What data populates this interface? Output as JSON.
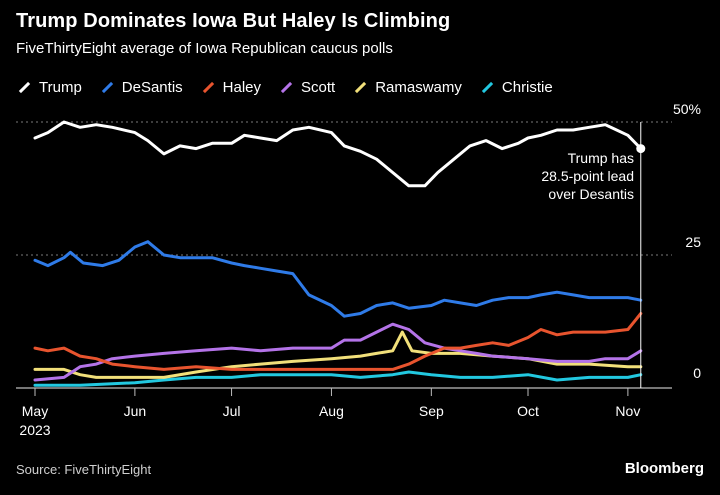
{
  "header": {
    "title": "Trump Dominates Iowa But Haley Is Climbing",
    "subtitle": "FiveThirtyEight average of Iowa Republican caucus polls"
  },
  "footer": {
    "source": "Source: FiveThirtyEight",
    "brand": "Bloomberg"
  },
  "chart_data": {
    "type": "line",
    "title": "Trump Dominates Iowa But Haley Is Climbing",
    "subtitle": "FiveThirtyEight average of Iowa Republican caucus polls",
    "xlabel": "",
    "ylabel": "",
    "ylim": [
      0,
      50
    ],
    "xlim": [
      "2023-05-01",
      "2023-11-06"
    ],
    "y_ticks": [
      0,
      25,
      50
    ],
    "y_tick_labels": [
      "0",
      "25",
      "50%"
    ],
    "x_ticks": [
      "2023-05-01",
      "2023-06-01",
      "2023-07-01",
      "2023-08-01",
      "2023-09-01",
      "2023-10-01",
      "2023-11-01"
    ],
    "x_tick_labels": [
      "May\n2023",
      "Jun",
      "Jul",
      "Aug",
      "Sep",
      "Oct",
      "Nov"
    ],
    "grid": true,
    "legend_position": "top-left",
    "annotation": {
      "text_lines": [
        "Trump has",
        "28.5-point lead",
        "over Desantis"
      ],
      "date": "2023-11-05"
    },
    "series": [
      {
        "name": "Trump",
        "color": "#ffffff",
        "points": [
          [
            "2023-05-01",
            47.0
          ],
          [
            "2023-05-05",
            48.0
          ],
          [
            "2023-05-10",
            50.0
          ],
          [
            "2023-05-15",
            49.0
          ],
          [
            "2023-05-20",
            49.5
          ],
          [
            "2023-05-25",
            49.0
          ],
          [
            "2023-06-01",
            48.0
          ],
          [
            "2023-06-05",
            46.5
          ],
          [
            "2023-06-10",
            44.0
          ],
          [
            "2023-06-15",
            45.5
          ],
          [
            "2023-06-20",
            45.0
          ],
          [
            "2023-06-25",
            46.0
          ],
          [
            "2023-07-01",
            46.0
          ],
          [
            "2023-07-05",
            47.5
          ],
          [
            "2023-07-10",
            47.0
          ],
          [
            "2023-07-15",
            46.5
          ],
          [
            "2023-07-20",
            48.5
          ],
          [
            "2023-07-25",
            49.0
          ],
          [
            "2023-08-01",
            48.0
          ],
          [
            "2023-08-05",
            45.5
          ],
          [
            "2023-08-10",
            44.5
          ],
          [
            "2023-08-15",
            43.0
          ],
          [
            "2023-08-20",
            40.5
          ],
          [
            "2023-08-25",
            38.0
          ],
          [
            "2023-08-30",
            38.0
          ],
          [
            "2023-09-03",
            40.5
          ],
          [
            "2023-09-08",
            43.0
          ],
          [
            "2023-09-13",
            45.5
          ],
          [
            "2023-09-18",
            46.5
          ],
          [
            "2023-09-23",
            45.0
          ],
          [
            "2023-09-28",
            46.0
          ],
          [
            "2023-10-01",
            47.0
          ],
          [
            "2023-10-05",
            47.5
          ],
          [
            "2023-10-10",
            48.5
          ],
          [
            "2023-10-15",
            48.5
          ],
          [
            "2023-10-20",
            49.0
          ],
          [
            "2023-10-25",
            49.5
          ],
          [
            "2023-11-01",
            47.5
          ],
          [
            "2023-11-05",
            45.0
          ]
        ]
      },
      {
        "name": "DeSantis",
        "color": "#2f7be8",
        "points": [
          [
            "2023-05-01",
            24.0
          ],
          [
            "2023-05-05",
            23.0
          ],
          [
            "2023-05-10",
            24.5
          ],
          [
            "2023-05-12",
            25.5
          ],
          [
            "2023-05-16",
            23.5
          ],
          [
            "2023-05-22",
            23.0
          ],
          [
            "2023-05-27",
            24.0
          ],
          [
            "2023-06-01",
            26.5
          ],
          [
            "2023-06-05",
            27.5
          ],
          [
            "2023-06-10",
            25.0
          ],
          [
            "2023-06-15",
            24.5
          ],
          [
            "2023-06-20",
            24.5
          ],
          [
            "2023-06-25",
            24.5
          ],
          [
            "2023-07-01",
            23.5
          ],
          [
            "2023-07-05",
            23.0
          ],
          [
            "2023-07-10",
            22.5
          ],
          [
            "2023-07-15",
            22.0
          ],
          [
            "2023-07-20",
            21.5
          ],
          [
            "2023-07-25",
            17.5
          ],
          [
            "2023-08-01",
            15.5
          ],
          [
            "2023-08-05",
            13.5
          ],
          [
            "2023-08-10",
            14.0
          ],
          [
            "2023-08-15",
            15.5
          ],
          [
            "2023-08-20",
            16.0
          ],
          [
            "2023-08-25",
            15.0
          ],
          [
            "2023-09-01",
            15.5
          ],
          [
            "2023-09-05",
            16.5
          ],
          [
            "2023-09-10",
            16.0
          ],
          [
            "2023-09-15",
            15.5
          ],
          [
            "2023-09-20",
            16.5
          ],
          [
            "2023-09-25",
            17.0
          ],
          [
            "2023-10-01",
            17.0
          ],
          [
            "2023-10-05",
            17.5
          ],
          [
            "2023-10-10",
            18.0
          ],
          [
            "2023-10-15",
            17.5
          ],
          [
            "2023-10-20",
            17.0
          ],
          [
            "2023-10-25",
            17.0
          ],
          [
            "2023-11-01",
            17.0
          ],
          [
            "2023-11-05",
            16.5
          ]
        ]
      },
      {
        "name": "Haley",
        "color": "#e8542e",
        "points": [
          [
            "2023-05-01",
            7.5
          ],
          [
            "2023-05-05",
            7.0
          ],
          [
            "2023-05-10",
            7.5
          ],
          [
            "2023-05-15",
            6.0
          ],
          [
            "2023-05-20",
            5.5
          ],
          [
            "2023-05-25",
            4.5
          ],
          [
            "2023-06-01",
            4.0
          ],
          [
            "2023-06-10",
            3.5
          ],
          [
            "2023-06-20",
            4.0
          ],
          [
            "2023-07-01",
            3.5
          ],
          [
            "2023-07-10",
            3.5
          ],
          [
            "2023-07-20",
            3.5
          ],
          [
            "2023-08-01",
            3.5
          ],
          [
            "2023-08-10",
            3.5
          ],
          [
            "2023-08-20",
            3.5
          ],
          [
            "2023-08-25",
            4.5
          ],
          [
            "2023-08-30",
            6.0
          ],
          [
            "2023-09-05",
            7.5
          ],
          [
            "2023-09-10",
            7.5
          ],
          [
            "2023-09-15",
            8.0
          ],
          [
            "2023-09-20",
            8.5
          ],
          [
            "2023-09-25",
            8.0
          ],
          [
            "2023-10-01",
            9.5
          ],
          [
            "2023-10-05",
            11.0
          ],
          [
            "2023-10-10",
            10.0
          ],
          [
            "2023-10-15",
            10.5
          ],
          [
            "2023-10-20",
            10.5
          ],
          [
            "2023-10-25",
            10.5
          ],
          [
            "2023-11-01",
            11.0
          ],
          [
            "2023-11-05",
            14.0
          ]
        ]
      },
      {
        "name": "Scott",
        "color": "#b473e8",
        "points": [
          [
            "2023-05-01",
            1.5
          ],
          [
            "2023-05-10",
            2.0
          ],
          [
            "2023-05-15",
            4.0
          ],
          [
            "2023-05-20",
            4.5
          ],
          [
            "2023-05-25",
            5.5
          ],
          [
            "2023-06-01",
            6.0
          ],
          [
            "2023-06-10",
            6.5
          ],
          [
            "2023-06-20",
            7.0
          ],
          [
            "2023-07-01",
            7.5
          ],
          [
            "2023-07-10",
            7.0
          ],
          [
            "2023-07-20",
            7.5
          ],
          [
            "2023-08-01",
            7.5
          ],
          [
            "2023-08-05",
            9.0
          ],
          [
            "2023-08-10",
            9.0
          ],
          [
            "2023-08-15",
            10.5
          ],
          [
            "2023-08-20",
            12.0
          ],
          [
            "2023-08-25",
            11.0
          ],
          [
            "2023-08-30",
            8.5
          ],
          [
            "2023-09-05",
            7.5
          ],
          [
            "2023-09-10",
            7.0
          ],
          [
            "2023-09-15",
            6.5
          ],
          [
            "2023-09-20",
            6.0
          ],
          [
            "2023-10-01",
            5.5
          ],
          [
            "2023-10-10",
            5.0
          ],
          [
            "2023-10-20",
            5.0
          ],
          [
            "2023-10-25",
            5.5
          ],
          [
            "2023-11-01",
            5.5
          ],
          [
            "2023-11-05",
            7.0
          ]
        ]
      },
      {
        "name": "Ramaswamy",
        "color": "#f2e07a",
        "points": [
          [
            "2023-05-01",
            3.5
          ],
          [
            "2023-05-10",
            3.5
          ],
          [
            "2023-05-15",
            2.5
          ],
          [
            "2023-05-20",
            2.0
          ],
          [
            "2023-06-01",
            2.0
          ],
          [
            "2023-06-10",
            2.0
          ],
          [
            "2023-06-20",
            3.0
          ],
          [
            "2023-07-01",
            4.0
          ],
          [
            "2023-07-10",
            4.5
          ],
          [
            "2023-07-20",
            5.0
          ],
          [
            "2023-08-01",
            5.5
          ],
          [
            "2023-08-10",
            6.0
          ],
          [
            "2023-08-15",
            6.5
          ],
          [
            "2023-08-20",
            7.0
          ],
          [
            "2023-08-23",
            10.5
          ],
          [
            "2023-08-26",
            7.0
          ],
          [
            "2023-09-01",
            6.5
          ],
          [
            "2023-09-10",
            6.5
          ],
          [
            "2023-09-20",
            6.0
          ],
          [
            "2023-10-01",
            5.5
          ],
          [
            "2023-10-10",
            4.5
          ],
          [
            "2023-10-20",
            4.5
          ],
          [
            "2023-11-01",
            4.0
          ],
          [
            "2023-11-05",
            4.0
          ]
        ]
      },
      {
        "name": "Christie",
        "color": "#22c8e0",
        "points": [
          [
            "2023-05-01",
            0.5
          ],
          [
            "2023-05-15",
            0.5
          ],
          [
            "2023-06-01",
            1.0
          ],
          [
            "2023-06-10",
            1.5
          ],
          [
            "2023-06-20",
            2.0
          ],
          [
            "2023-07-01",
            2.0
          ],
          [
            "2023-07-10",
            2.5
          ],
          [
            "2023-07-20",
            2.5
          ],
          [
            "2023-08-01",
            2.5
          ],
          [
            "2023-08-10",
            2.0
          ],
          [
            "2023-08-20",
            2.5
          ],
          [
            "2023-08-25",
            3.0
          ],
          [
            "2023-09-01",
            2.5
          ],
          [
            "2023-09-10",
            2.0
          ],
          [
            "2023-09-20",
            2.0
          ],
          [
            "2023-10-01",
            2.5
          ],
          [
            "2023-10-10",
            1.5
          ],
          [
            "2023-10-20",
            2.0
          ],
          [
            "2023-11-01",
            2.0
          ],
          [
            "2023-11-05",
            2.5
          ]
        ]
      }
    ]
  }
}
